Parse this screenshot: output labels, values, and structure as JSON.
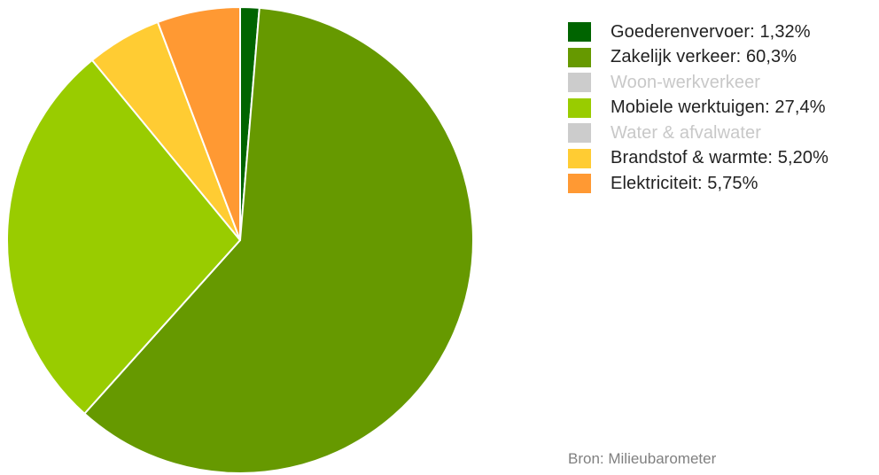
{
  "chart_data": {
    "type": "pie",
    "slices": [
      {
        "label": "Goederenvervoer: 1,32%",
        "value": 1.32,
        "color": "#006400",
        "visible": true
      },
      {
        "label": "Zakelijk verkeer: 60,3%",
        "value": 60.3,
        "color": "#669900",
        "visible": true
      },
      {
        "label": "Woon-werkverkeer",
        "value": 0,
        "color": "#cccccc",
        "visible": false
      },
      {
        "label": "Mobiele werktuigen: 27,4%",
        "value": 27.4,
        "color": "#99cc00",
        "visible": true
      },
      {
        "label": "Water & afvalwater",
        "value": 0,
        "color": "#cccccc",
        "visible": false
      },
      {
        "label": "Brandstof & warmte: 5,20%",
        "value": 5.2,
        "color": "#ffcc33",
        "visible": true
      },
      {
        "label": "Elektriciteit: 5,75%",
        "value": 5.75,
        "color": "#ff9933",
        "visible": true
      }
    ],
    "legend_position": "right",
    "start_angle": "top, clockwise"
  },
  "source": "Bron: Milieubarometer"
}
